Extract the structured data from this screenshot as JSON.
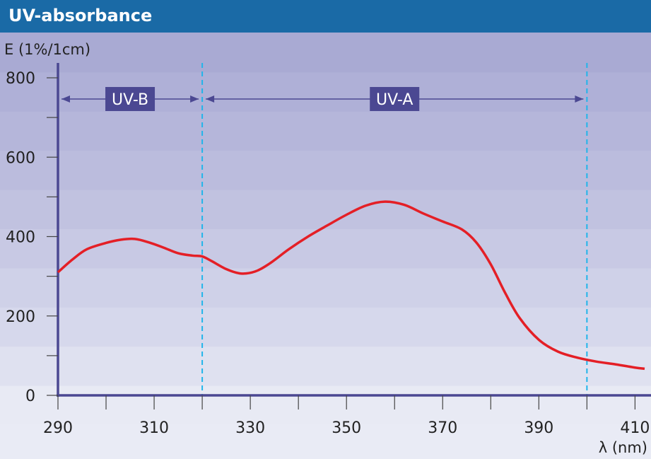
{
  "chart_data": {
    "type": "line",
    "title": "UV-absorbance",
    "ylabel": "E (1%/1cm)",
    "xlabel": "λ (nm)",
    "xlim": [
      290,
      412
    ],
    "ylim": [
      0,
      800
    ],
    "x_ticks": [
      290,
      310,
      330,
      350,
      370,
      390,
      410
    ],
    "y_ticks": [
      0,
      200,
      400,
      600,
      800
    ],
    "grid": false,
    "band_boundaries": [
      320,
      400
    ],
    "bands": [
      {
        "label": "UV-B",
        "from": 290,
        "to": 320
      },
      {
        "label": "UV-A",
        "from": 320,
        "to": 400
      }
    ],
    "series": [
      {
        "color": "#e41f26",
        "x": [
          290,
          293,
          296,
          300,
          303,
          306,
          309,
          312,
          315,
          318,
          320,
          322,
          325,
          328,
          331,
          334,
          338,
          342,
          346,
          350,
          354,
          358,
          362,
          366,
          370,
          374,
          377,
          380,
          383,
          386,
          390,
          394,
          398,
          402,
          406,
          410,
          412
        ],
        "y": [
          310,
          342,
          368,
          384,
          392,
          394,
          385,
          372,
          358,
          352,
          350,
          338,
          318,
          307,
          312,
          332,
          368,
          400,
          428,
          455,
          478,
          488,
          480,
          458,
          438,
          418,
          385,
          330,
          258,
          195,
          140,
          110,
          95,
          85,
          78,
          70,
          67
        ]
      }
    ],
    "colors": {
      "axis": "#4b4892",
      "boundary": "#21b5ea",
      "band_label_bg": "#4b4892",
      "title_bar": "#1a6aa6"
    }
  }
}
